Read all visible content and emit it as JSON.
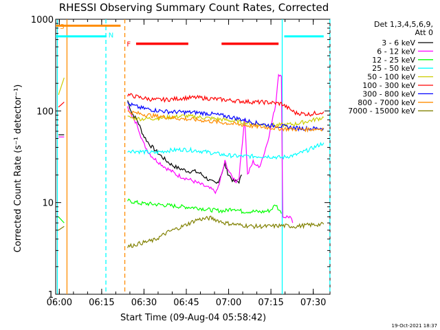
{
  "chart_data": {
    "type": "line",
    "title": "RHESSI Observing Summary Count Rates, Corrected",
    "xlabel": "Start Time (09-Aug-04 05:58:42)",
    "ylabel": "Corrected Count Rate (s⁻¹ detector⁻¹)",
    "y_scale": "log",
    "ylim": [
      1,
      1000
    ],
    "y_ticks": [
      {
        "value": 1,
        "label": "1"
      },
      {
        "value": 10,
        "label": "10"
      },
      {
        "value": 100,
        "label": "100"
      },
      {
        "value": 1000,
        "label": "1000"
      }
    ],
    "xlim_minutes": [
      0,
      95
    ],
    "x_ticks": [
      {
        "t": 1.3,
        "label": "06:00"
      },
      {
        "t": 16.3,
        "label": "06:15"
      },
      {
        "t": 31.3,
        "label": "06:30"
      },
      {
        "t": 46.3,
        "label": "06:45"
      },
      {
        "t": 61.3,
        "label": "07:00"
      },
      {
        "t": 76.3,
        "label": "07:15"
      },
      {
        "t": 91.3,
        "label": "07:30"
      }
    ],
    "legend_header": [
      "Det 1,3,4,5,6,9,",
      "Att 0"
    ],
    "legend_position": "right",
    "timestamp": "19-Oct-2021 18:37",
    "series": [
      {
        "name": "3 - 6 keV",
        "color": "#000000",
        "segments": [
          [
            [
              1,
              55
            ],
            [
              3,
              55
            ]
          ],
          [
            [
              25.5,
              130
            ],
            [
              27,
              95
            ],
            [
              29,
              78
            ],
            [
              31,
              55
            ],
            [
              33,
              44
            ],
            [
              35,
              38
            ],
            [
              37,
              33
            ],
            [
              39,
              29
            ],
            [
              41,
              26
            ],
            [
              43,
              24
            ],
            [
              45,
              23
            ],
            [
              47,
              22
            ],
            [
              49,
              22
            ],
            [
              51,
              21
            ],
            [
              53,
              19
            ],
            [
              55,
              17
            ],
            [
              57,
              16
            ],
            [
              58,
              18
            ],
            [
              60,
              26
            ],
            [
              61,
              21
            ],
            [
              63,
              17
            ],
            [
              65,
              17
            ],
            [
              66,
              20
            ]
          ]
        ]
      },
      {
        "name": "6 - 12 keV",
        "color": "#ff00ff",
        "segments": [
          [
            [
              1,
              52
            ],
            [
              3,
              52
            ]
          ],
          [
            [
              25.5,
              115
            ],
            [
              27,
              85
            ],
            [
              29,
              70
            ],
            [
              31,
              45
            ],
            [
              33,
              35
            ],
            [
              35,
              30
            ],
            [
              37,
              27
            ],
            [
              39,
              24
            ],
            [
              41,
              22
            ],
            [
              43,
              20
            ],
            [
              45,
              19
            ],
            [
              47,
              18
            ],
            [
              49,
              17
            ],
            [
              51,
              16
            ],
            [
              53,
              15
            ],
            [
              55,
              14
            ],
            [
              57,
              13
            ],
            [
              58,
              16
            ],
            [
              60,
              28
            ],
            [
              62,
              20
            ],
            [
              64,
              17
            ],
            [
              65,
              19
            ],
            [
              67,
              85
            ],
            [
              68,
              20
            ],
            [
              70,
              28
            ],
            [
              72,
              24
            ],
            [
              74,
              35
            ],
            [
              76,
              60
            ],
            [
              78,
              120
            ],
            [
              79,
              260
            ],
            [
              80,
              230
            ],
            [
              80.5,
              7
            ],
            [
              83,
              7
            ],
            [
              84,
              6
            ]
          ]
        ]
      },
      {
        "name": "12 - 25 keV",
        "color": "#00ff00",
        "segments": [
          [
            [
              1,
              7
            ],
            [
              3,
              6
            ]
          ],
          [
            [
              25.5,
              10.5
            ],
            [
              30,
              9.8
            ],
            [
              35,
              9.6
            ],
            [
              40,
              9.3
            ],
            [
              45,
              9.0
            ],
            [
              50,
              8.8
            ],
            [
              55,
              8.3
            ],
            [
              60,
              8.1
            ],
            [
              63,
              8.7
            ],
            [
              66,
              8.0
            ],
            [
              70,
              8.0
            ],
            [
              73,
              7.9
            ],
            [
              76,
              8.2
            ],
            [
              78,
              9.5
            ],
            [
              80,
              7.6
            ]
          ]
        ]
      },
      {
        "name": "25 - 50 keV",
        "color": "#00ffff",
        "segments": [
          [
            [
              0,
              650
            ],
            [
              18,
              650
            ]
          ],
          [
            [
              25.5,
              37
            ],
            [
              30,
              36
            ],
            [
              35,
              35
            ],
            [
              40,
              37
            ],
            [
              45,
              38
            ],
            [
              50,
              37
            ],
            [
              55,
              35
            ],
            [
              60,
              33
            ],
            [
              65,
              32
            ],
            [
              70,
              32
            ],
            [
              75,
              32
            ],
            [
              80,
              31
            ],
            [
              85,
              33
            ],
            [
              90,
              38
            ],
            [
              95,
              45
            ]
          ],
          [
            [
              81,
              650
            ],
            [
              95,
              650
            ]
          ]
        ]
      },
      {
        "name": "50 - 100 keV",
        "color": "#cccc00",
        "segments": [
          [
            [
              1,
              150
            ],
            [
              3,
              230
            ]
          ],
          [
            [
              25.5,
              85
            ],
            [
              30,
              82
            ],
            [
              35,
              83
            ],
            [
              40,
              85
            ],
            [
              45,
              88
            ],
            [
              50,
              86
            ],
            [
              55,
              83
            ],
            [
              60,
              80
            ],
            [
              65,
              76
            ],
            [
              70,
              72
            ],
            [
              75,
              70
            ],
            [
              80,
              70
            ],
            [
              85,
              72
            ],
            [
              90,
              78
            ],
            [
              95,
              85
            ]
          ]
        ]
      },
      {
        "name": "100 - 300 keV",
        "color": "#ff0000",
        "segments": [
          [
            [
              1,
              110
            ],
            [
              3,
              125
            ]
          ],
          [
            [
              25.5,
              150
            ],
            [
              30,
              140
            ],
            [
              35,
              132
            ],
            [
              40,
              133
            ],
            [
              45,
              138
            ],
            [
              50,
              140
            ],
            [
              55,
              136
            ],
            [
              60,
              132
            ],
            [
              65,
              128
            ],
            [
              70,
              125
            ],
            [
              75,
              124
            ],
            [
              80,
              120
            ],
            [
              85,
              95
            ],
            [
              90,
              92
            ],
            [
              95,
              98
            ]
          ]
        ]
      },
      {
        "name": "300 - 800 keV",
        "color": "#0000ff",
        "segments": [
          [
            [
              25.5,
              120
            ],
            [
              30,
              108
            ],
            [
              35,
              102
            ],
            [
              40,
              98
            ],
            [
              45,
              97
            ],
            [
              50,
              96
            ],
            [
              55,
              93
            ],
            [
              60,
              88
            ],
            [
              65,
              82
            ],
            [
              70,
              75
            ],
            [
              75,
              70
            ],
            [
              80,
              68
            ],
            [
              85,
              65
            ],
            [
              90,
              64
            ],
            [
              95,
              65
            ]
          ]
        ]
      },
      {
        "name": "800 - 7000 keV",
        "color": "#ff8c00",
        "segments": [
          [
            [
              0,
              850
            ],
            [
              23,
              850
            ]
          ],
          [
            [
              25.5,
              98
            ],
            [
              30,
              93
            ],
            [
              35,
              88
            ],
            [
              40,
              85
            ],
            [
              45,
              82
            ],
            [
              50,
              80
            ],
            [
              55,
              77
            ],
            [
              60,
              74
            ],
            [
              65,
              71
            ],
            [
              70,
              68
            ],
            [
              75,
              66
            ],
            [
              80,
              64
            ],
            [
              85,
              63
            ],
            [
              90,
              63
            ],
            [
              95,
              64
            ]
          ]
        ]
      },
      {
        "name": "7000 - 15000 keV",
        "color": "#808000",
        "segments": [
          [
            [
              1,
              5.0
            ],
            [
              3,
              5.5
            ]
          ],
          [
            [
              25.5,
              3.3
            ],
            [
              30,
              3.6
            ],
            [
              35,
              3.9
            ],
            [
              40,
              4.8
            ],
            [
              45,
              5.5
            ],
            [
              50,
              6.5
            ],
            [
              55,
              6.8
            ],
            [
              60,
              6.0
            ],
            [
              65,
              5.7
            ],
            [
              70,
              5.5
            ],
            [
              75,
              5.5
            ],
            [
              80,
              5.6
            ],
            [
              85,
              5.5
            ],
            [
              90,
              5.7
            ],
            [
              95,
              5.8
            ]
          ]
        ]
      }
    ],
    "vlines": [
      {
        "t": 0.6,
        "color": "#00ffff",
        "dash": false
      },
      {
        "t": 4.0,
        "color": "#ff8c00",
        "dash": false
      },
      {
        "t": 17.8,
        "color": "#00ffff",
        "dash": true
      },
      {
        "t": 24.5,
        "color": "#ff8c00",
        "dash": true
      },
      {
        "t": 80.3,
        "color": "#00ffff",
        "dash": false
      },
      {
        "t": 97.2,
        "color": "#00ffff",
        "dash": true
      }
    ],
    "annotations": [
      {
        "label": "S",
        "t": 1.5,
        "y": 840,
        "color": "#ff8c00"
      },
      {
        "label": "N",
        "t": 18.7,
        "y": 680,
        "color": "#00ffff"
      },
      {
        "label": "F",
        "t": 25.2,
        "y": 540,
        "color": "#ff0000"
      }
    ],
    "flare_bars": [
      {
        "t0": 28.5,
        "t1": 47.0,
        "y": 540,
        "color": "#ff0000"
      },
      {
        "t0": 58.8,
        "t1": 79.0,
        "y": 540,
        "color": "#ff0000"
      }
    ]
  }
}
